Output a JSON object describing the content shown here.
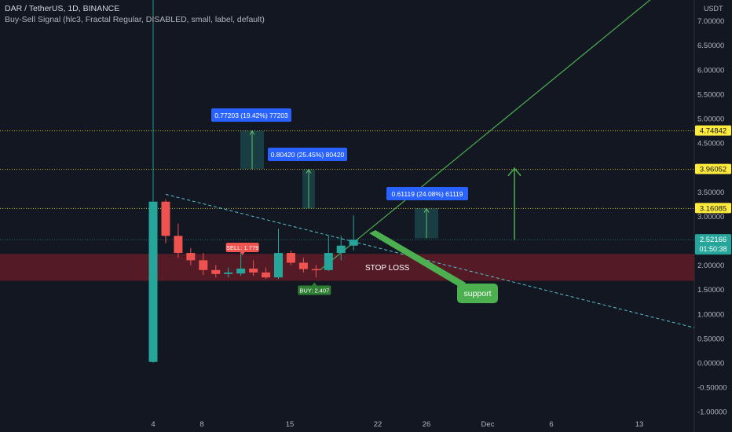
{
  "header": {
    "title": "DAR / TetherUS, 1D, BINANCE",
    "indicator": "Buy-Sell Signal (hlc3, Fractal Regular, DISABLED, small, label, default)"
  },
  "price_axis": {
    "currency": "USDT",
    "ticks": [
      "7.00000",
      "6.50000",
      "6.00000",
      "5.50000",
      "5.00000",
      "4.50000",
      "3.50000",
      "3.00000",
      "2.00000",
      "1.50000",
      "1.00000",
      "0.50000",
      "0.00000",
      "-0.50000",
      "-1.00000"
    ],
    "tick_values": [
      7.0,
      6.5,
      6.0,
      5.5,
      5.0,
      4.5,
      3.5,
      3.0,
      2.0,
      1.5,
      1.0,
      0.5,
      0.0,
      -0.5,
      -1.0
    ]
  },
  "time_axis": {
    "labels": [
      "4",
      "8",
      "15",
      "22",
      "26",
      "Dec",
      "6",
      "13"
    ]
  },
  "price_tags": [
    {
      "name": "target-3",
      "text": "4.74842",
      "value": 4.74842,
      "bg": "#ffeb3b",
      "fg": "#131722"
    },
    {
      "name": "target-2",
      "text": "3.96052",
      "value": 3.96052,
      "bg": "#ffeb3b",
      "fg": "#131722"
    },
    {
      "name": "target-1",
      "text": "3.16085",
      "value": 3.16085,
      "bg": "#ffeb3b",
      "fg": "#131722"
    },
    {
      "name": "current",
      "text": "2.52166",
      "value": 2.52166,
      "bg": "#26a69a",
      "fg": "#ffffff",
      "sub": "01:50:38"
    }
  ],
  "measure_labels": [
    {
      "text": "0.77203 (19.42%) 77203"
    },
    {
      "text": "0.80420 (25.45%) 80420"
    },
    {
      "text": "0.61119 (24.08%) 61119"
    }
  ],
  "signals": {
    "sell": "SELL: 1.779",
    "buy": "BUY: 2.407"
  },
  "annotations": {
    "stop_loss": "STOP LOSS",
    "support": "support"
  },
  "colors": {
    "background": "#131722",
    "up": "#26a69a",
    "down": "#ef5350",
    "stop_zone": "#8b1f2c",
    "level_line": "#f0e040",
    "trendline": "#4caf50",
    "measure_label": "#2962ff"
  },
  "chart_data": {
    "type": "candlestick",
    "series": [
      {
        "date": "Nov 4",
        "o": 0.02,
        "h": 3.3,
        "l": 0.02,
        "c": 3.3
      },
      {
        "date": "Nov 5",
        "o": 3.3,
        "h": 3.35,
        "l": 2.45,
        "c": 2.6
      },
      {
        "date": "Nov 6",
        "o": 2.6,
        "h": 2.85,
        "l": 2.15,
        "c": 2.25
      },
      {
        "date": "Nov 7",
        "o": 2.25,
        "h": 2.35,
        "l": 2.0,
        "c": 2.1
      },
      {
        "date": "Nov 8",
        "o": 2.1,
        "h": 2.25,
        "l": 1.8,
        "c": 1.9
      },
      {
        "date": "Nov 9",
        "o": 1.9,
        "h": 2.0,
        "l": 1.75,
        "c": 1.82
      },
      {
        "date": "Nov 10",
        "o": 1.82,
        "h": 1.95,
        "l": 1.75,
        "c": 1.85
      },
      {
        "date": "Nov 11",
        "o": 1.83,
        "h": 2.25,
        "l": 1.78,
        "c": 1.93
      },
      {
        "date": "Nov 12",
        "o": 1.93,
        "h": 2.1,
        "l": 1.78,
        "c": 1.85
      },
      {
        "date": "Nov 13",
        "o": 1.85,
        "h": 1.95,
        "l": 1.72,
        "c": 1.75
      },
      {
        "date": "Nov 14",
        "o": 1.75,
        "h": 2.75,
        "l": 1.72,
        "c": 2.25
      },
      {
        "date": "Nov 15",
        "o": 2.25,
        "h": 2.3,
        "l": 2.0,
        "c": 2.05
      },
      {
        "date": "Nov 16",
        "o": 2.05,
        "h": 2.15,
        "l": 1.85,
        "c": 1.92
      },
      {
        "date": "Nov 17",
        "o": 1.92,
        "h": 2.0,
        "l": 1.75,
        "c": 1.9
      },
      {
        "date": "Nov 18",
        "o": 1.9,
        "h": 2.6,
        "l": 1.88,
        "c": 2.25
      },
      {
        "date": "Nov 19",
        "o": 2.25,
        "h": 2.6,
        "l": 2.1,
        "c": 2.4
      },
      {
        "date": "Nov 20",
        "o": 2.4,
        "h": 3.02,
        "l": 2.3,
        "c": 2.52
      }
    ],
    "horizontal_levels": [
      4.74842,
      3.96052,
      3.16085,
      2.52166
    ],
    "ylim": [
      -1.0,
      7.3
    ]
  }
}
